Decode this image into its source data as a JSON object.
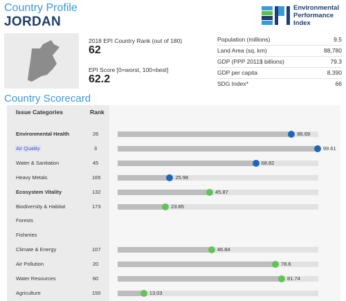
{
  "header": {
    "title": "Country Profile",
    "country": "JORDAN"
  },
  "logo": {
    "mark_text": "EPI",
    "lines": [
      "Environmental",
      "Performance",
      "Index"
    ],
    "bar_colors": [
      "#3a9ad9",
      "#5fbf4c",
      "#1e3e6e",
      "#3a9ad9"
    ]
  },
  "map": {
    "icon": "jordan-map-icon",
    "color": "#8c8c8c"
  },
  "rank": {
    "label": "2018 EPI Country Rank (out of 180)",
    "value": "62"
  },
  "score": {
    "label": "EPI Score [0=worst, 100=best]",
    "value": "62.2"
  },
  "stats": [
    {
      "label": "Population (millions)",
      "value": "9.5"
    },
    {
      "label": "Land Area (sq. km)",
      "value": "88,780"
    },
    {
      "label": "GDP (PPP 2011$ billions)",
      "value": "79.3"
    },
    {
      "label": "GDP per capita",
      "value": "8,390"
    },
    {
      "label": "SDG Index*",
      "value": "66"
    }
  ],
  "scorecard": {
    "title": "Country Scorecard",
    "col_categories": "Issue Categories",
    "col_rank": "Rank"
  },
  "colors": {
    "blue": "#1f66b8",
    "green": "#62c35a",
    "bar": "#bdbdbd",
    "track": "#e2e2e2"
  },
  "chart_data": {
    "type": "bar",
    "title": "Country Scorecard",
    "xlim": [
      0,
      100
    ],
    "categories": [
      "Environmental Health",
      "Air Quality",
      "Water & Sanitation",
      "Heavy Metals",
      "Ecosystem Vitality",
      "Biodiversity & Habitat",
      "Forests",
      "Fisheries",
      "Climate & Energy",
      "Air Pollution",
      "Water Resources",
      "Agriculture"
    ],
    "ranks": [
      "26",
      "3",
      "45",
      "165",
      "132",
      "173",
      "",
      "",
      "107",
      "20",
      "60",
      "150"
    ],
    "values": [
      86.69,
      99.61,
      68.82,
      25.98,
      45.87,
      23.85,
      null,
      null,
      46.84,
      78.6,
      81.74,
      13.03
    ],
    "labels": [
      "86.69",
      "99.61",
      "68.82",
      "25.98",
      "45.87",
      "23.85",
      "",
      "",
      "46.84",
      "78.6",
      "81.74",
      "13.03"
    ],
    "groups": [
      "blue",
      "blue",
      "blue",
      "blue",
      "green",
      "green",
      "green",
      "green",
      "green",
      "green",
      "green",
      "green"
    ],
    "bold_rows": [
      0,
      4
    ],
    "highlighted_rows": [
      1
    ]
  }
}
